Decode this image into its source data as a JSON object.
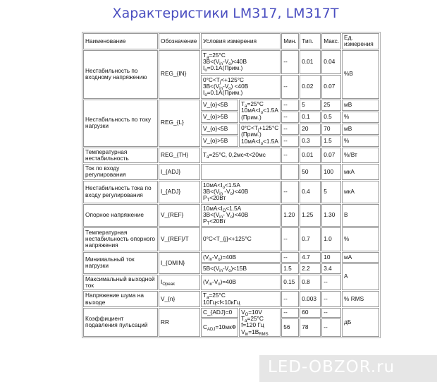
{
  "title": "Характеристики LM317, LM317T",
  "watermark": "LED-OBZOR.ru",
  "header": {
    "name": "Наименование",
    "symbol": "Обозначение",
    "conditions": "Условия измерения",
    "min": "Мин.",
    "typ": "Тип.",
    "max": "Макс.",
    "unit": "Ед. измерения"
  },
  "rows": {
    "regin": {
      "name": "Нестабильность по входному напряжению",
      "symbol": "REG_{IN}",
      "c1": "T_{a}=25°C\n3В<(V_{in}-V_{o})<40В\nI_{o}=0.1А(Прим.)",
      "min1": "--",
      "typ1": "0.01",
      "max1": "0.04",
      "c2": "0°C<T_{j}<+125°C\n3В<(V_{in}-V_{o}) <40В\nI_{o}=0.1А(Прим.)",
      "min2": "--",
      "typ2": "0.02",
      "max2": "0.07",
      "unit": "%В"
    },
    "regl": {
      "name": "Нестабильность по току нагрузки",
      "symbol": "REG_{L}",
      "v1": "V_{o}<5В",
      "v2": "V_{o}>5В",
      "v3": "V_{o}<5В",
      "v4": "V_{o}>5В",
      "ca": "T_{a}=25°C\n10мА<I_{o}<1.5А\n(Прим.)",
      "cb": "0°C<T_{j}+125°C\n(Прим.)\n10мА<I_{o}<1.5А",
      "min1": "--",
      "typ1": "5",
      "max1": "25",
      "unit1": "мВ",
      "min2": "--",
      "typ2": "0.1",
      "max2": "0.5",
      "unit2": "%",
      "min3": "--",
      "typ3": "20",
      "max3": "70",
      "unit3": "мВ",
      "min4": "--",
      "typ4": "0.3",
      "max4": "1.5",
      "unit4": "%"
    },
    "regth": {
      "name": "Температурная нестабильность",
      "symbol": "REG_{TH}",
      "cond": "T_{a}=25°C, 0,2мс<t<20мс",
      "min": "--",
      "typ": "0.01",
      "max": "0.07",
      "unit": "%/Вт"
    },
    "iadj": {
      "name": "Ток по входу регулирования",
      "symbol": "I_{ADJ}",
      "cond": "",
      "min": "",
      "typ": "50",
      "max": "100",
      "unit": "мкА"
    },
    "iadj2": {
      "name": "Нестабильность тока по входу регулирования",
      "symbol": "I_{ADJ}",
      "cond": "10мА<I_{o}<1.5А\n3В<(V_{in} -V_{o})<40В\nP_{T}<20Вт",
      "min": "--",
      "typ": "0.4",
      "max": "5",
      "unit": "мкА"
    },
    "vref": {
      "name": "Опорное напряжение",
      "symbol": "V_{REF}",
      "cond": "10мА<I_{O}<1.5А\n3В<(V_{in}- V_{o})<40В\nP_{T}<20Вт",
      "min": "1.20",
      "typ": "1.25",
      "max": "1.30",
      "unit": "В"
    },
    "vreft": {
      "name": "Температурная нестабильность опорного напряжения",
      "symbol": "V_{REF}/T",
      "cond": "0°C<T_{j}<+125°C",
      "min": "--",
      "typ": "0.7",
      "max": "1.0",
      "unit": "%"
    },
    "iomin": {
      "name": "Минимальный ток нагрузки",
      "symbol": "I_{OMIN}",
      "c1": "(V_{in}-V_{o})=40В",
      "min1": "--",
      "typ1": "4.7",
      "max1": "10",
      "unit1": "мА",
      "c2": "5В<(V_{in}-V_{o})<15В",
      "min2": "1.5",
      "typ2": "2.2",
      "max2": "3.4",
      "unit2": "А"
    },
    "iopeak": {
      "name": "Максимальный выходной ток",
      "symbol": "I_{Opeak}",
      "cond": "(V_{in}-V_{o})=40В",
      "min": "0.15",
      "typ": "0.8",
      "max": "--"
    },
    "vn": {
      "name": "Напряжение шума на выходе",
      "symbol": "V_{n}",
      "cond": "T_{a}=25°C\n10Гц<f<10кГц",
      "min": "--",
      "typ": "0.003",
      "max": "--",
      "unit": "% RMS"
    },
    "rr": {
      "name": "Коэффициент подавления пульсаций",
      "symbol": "RR",
      "c1": "C_{ADJ}=0",
      "c2": "C_{ADJ}=10мкФ",
      "cc": "V_{O}=10V\nT_{a}=25°C\nf=120 Гц\nV_{in}=1В_{RMS}",
      "min1": "--",
      "typ1": "60",
      "max1": "--",
      "min2": "56",
      "typ2": "78",
      "max2": "--",
      "unit": "дБ"
    }
  }
}
